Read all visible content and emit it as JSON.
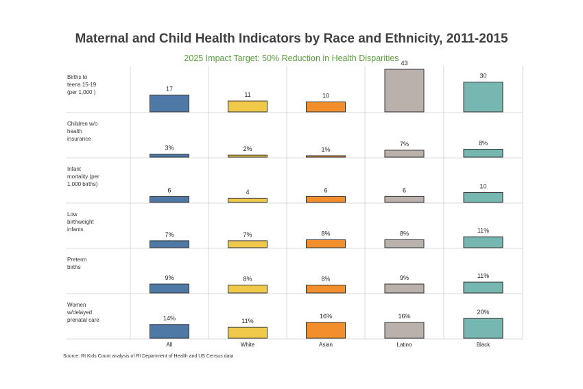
{
  "title": "Maternal and Child Health Indicators by Race and Ethnicity, 2011-2015",
  "subtitle": "2025 Impact Target:  50% Reduction in Health Disparities",
  "source": "Source: RI Kids Count analysis of RI Department of Health and US Census data",
  "colors": {
    "All": "#4e79a7",
    "White": "#f1c94a",
    "Asian": "#f28e2b",
    "Latino": "#bab0ac",
    "Black": "#76b7b2"
  },
  "chart_data": {
    "type": "bar",
    "categories": [
      "All",
      "White",
      "Asian",
      "Latino",
      "Black"
    ],
    "rows": [
      {
        "label": [
          "Births to",
          "teens 15-19",
          "(per 1,000 )"
        ],
        "values": [
          17,
          11,
          10,
          43,
          30
        ],
        "labels": [
          "17",
          "11",
          "10",
          "43",
          "30"
        ],
        "max": 43
      },
      {
        "label": [
          "Children w/o",
          "health",
          "insurance"
        ],
        "values": [
          3,
          2,
          1,
          7,
          8
        ],
        "labels": [
          "3%",
          "2%",
          "1%",
          "7%",
          "8%"
        ],
        "max": 43
      },
      {
        "label": [
          "Infant",
          "mortality (per",
          "1,000 births)"
        ],
        "values": [
          6,
          4,
          6,
          6,
          10
        ],
        "labels": [
          "6",
          "4",
          "6",
          "6",
          "10"
        ],
        "max": 43
      },
      {
        "label": [
          "Low",
          "birthweight",
          "infants"
        ],
        "values": [
          7,
          7,
          8,
          8,
          11
        ],
        "labels": [
          "7%",
          "7%",
          "8%",
          "8%",
          "11%"
        ],
        "max": 43
      },
      {
        "label": [
          "Preterm",
          "births"
        ],
        "values": [
          9,
          8,
          8,
          9,
          11
        ],
        "labels": [
          "9%",
          "8%",
          "8%",
          "9%",
          "11%"
        ],
        "max": 43
      },
      {
        "label": [
          "Women",
          "w/delayed",
          "prenatal care"
        ],
        "values": [
          14,
          11,
          16,
          16,
          20
        ],
        "labels": [
          "14%",
          "11%",
          "16%",
          "16%",
          "20%"
        ],
        "max": 43
      }
    ]
  }
}
